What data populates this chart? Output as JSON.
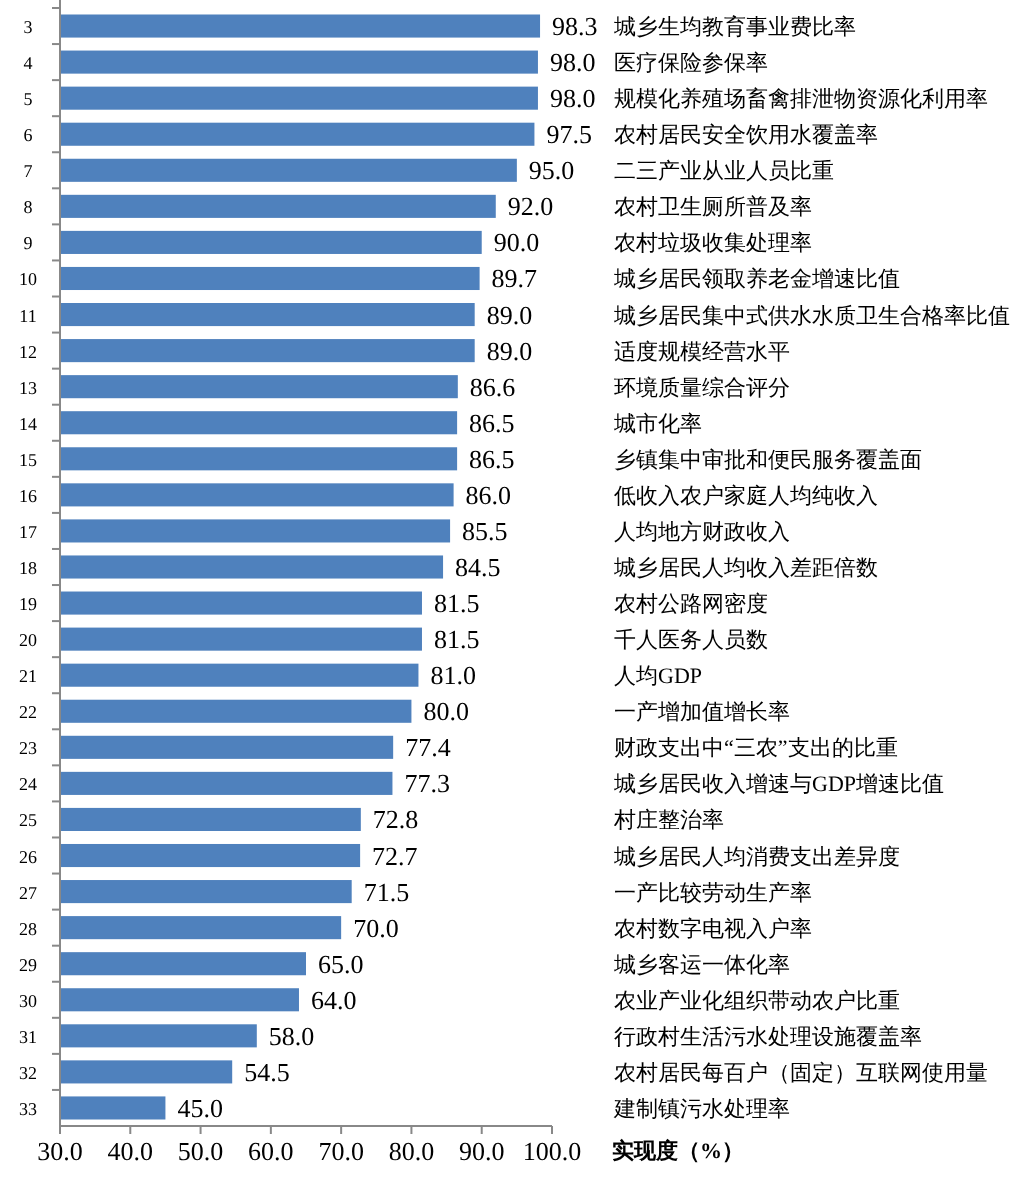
{
  "chart_data": {
    "type": "bar",
    "orientation": "horizontal",
    "xlabel": "实现度（%）",
    "color": "#4f81bd",
    "categories": [
      "3",
      "4",
      "5",
      "6",
      "7",
      "8",
      "9",
      "10",
      "11",
      "12",
      "13",
      "14",
      "15",
      "16",
      "17",
      "18",
      "19",
      "20",
      "21",
      "22",
      "23",
      "24",
      "25",
      "26",
      "27",
      "28",
      "29",
      "30",
      "31",
      "32",
      "33"
    ],
    "values": [
      98.3,
      98.0,
      98.0,
      97.5,
      95.0,
      92.0,
      90.0,
      89.7,
      89.0,
      89.0,
      86.6,
      86.5,
      86.5,
      86.0,
      85.5,
      84.5,
      81.5,
      81.5,
      81.0,
      80.0,
      77.4,
      77.3,
      72.8,
      72.7,
      71.5,
      70.0,
      65.0,
      64.0,
      58.0,
      54.5,
      45.0
    ],
    "value_labels": [
      "98.3",
      "98.0",
      "98.0",
      "97.5",
      "95.0",
      "92.0",
      "90.0",
      "89.7",
      "89.0",
      "89.0",
      "86.6",
      "86.5",
      "86.5",
      "86.0",
      "85.5",
      "84.5",
      "81.5",
      "81.5",
      "81.0",
      "80.0",
      "77.4",
      "77.3",
      "72.8",
      "72.7",
      "71.5",
      "70.0",
      "65.0",
      "64.0",
      "58.0",
      "54.5",
      "45.0"
    ],
    "xlim": [
      30,
      100
    ],
    "xticks": [
      {
        "value": 30,
        "label": "30.0"
      },
      {
        "value": 40,
        "label": "40.0"
      },
      {
        "value": 50,
        "label": "50.0"
      },
      {
        "value": 60,
        "label": "60.0"
      },
      {
        "value": 70,
        "label": "70.0"
      },
      {
        "value": 80,
        "label": "80.0"
      },
      {
        "value": 90,
        "label": "90.0"
      },
      {
        "value": 100,
        "label": "100.0"
      }
    ],
    "annotations": [
      "城乡生均教育事业费比率",
      "医疗保险参保率",
      "规模化养殖场畜禽排泄物资源化利用率",
      "农村居民安全饮用水覆盖率",
      "二三产业从业人员比重",
      "农村卫生厕所普及率",
      "农村垃圾收集处理率",
      "城乡居民领取养老金增速比值",
      "城乡居民集中式供水水质卫生合格率比值",
      "适度规模经营水平",
      "环境质量综合评分",
      "城市化率",
      "乡镇集中审批和便民服务覆盖面",
      "低收入农户家庭人均纯收入",
      "人均地方财政收入",
      "城乡居民人均收入差距倍数",
      "农村公路网密度",
      "千人医务人员数",
      "人均GDP",
      "一产增加值增长率",
      "财政支出中“三农”支出的比重",
      "城乡居民收入增速与GDP增速比值",
      "村庄整治率",
      "城乡居民人均消费支出差异度",
      "一产比较劳动生产率",
      "农村数字电视入户率",
      "城乡客运一体化率",
      "农业产业化组织带动农户比重",
      "行政村生活污水处理设施覆盖率",
      "农村居民每百户（固定）互联网使用量",
      "建制镇污水处理率"
    ]
  }
}
